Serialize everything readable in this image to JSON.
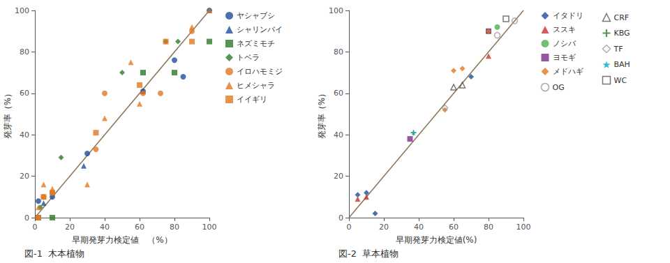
{
  "chart_data": [
    {
      "type": "scatter",
      "title": "図-1  木本植物",
      "xlabel": "早期発芽力検定値　（%）",
      "ylabel": "発芽率（%）",
      "xlim": [
        0,
        100
      ],
      "ylim": [
        0,
        100
      ],
      "xticks": [
        0,
        20,
        40,
        60,
        80,
        100
      ],
      "yticks": [
        0,
        20,
        40,
        60,
        80,
        100
      ],
      "grid": false,
      "legend": "right",
      "series": [
        {
          "type": "line",
          "color": "#8B7355",
          "values": [
            [
              0,
              0
            ],
            [
              100,
              100
            ]
          ]
        },
        {
          "name": "ヤシャブシ",
          "color": "#1F4E9A",
          "marker": "circle",
          "values": [
            [
              2,
              8
            ],
            [
              10,
              10
            ],
            [
              30,
              31
            ],
            [
              62,
              61
            ],
            [
              80,
              76
            ],
            [
              85,
              68
            ],
            [
              100,
              100
            ]
          ]
        },
        {
          "name": "シャリンバイ",
          "color": "#1F4E9A",
          "marker": "triangle",
          "values": [
            [
              5,
              7
            ],
            [
              28,
              25
            ],
            [
              62,
              61
            ],
            [
              100,
              100
            ]
          ]
        },
        {
          "name": "ネズミモチ",
          "color": "#2D7A27",
          "marker": "square",
          "values": [
            [
              2,
              0
            ],
            [
              10,
              0
            ],
            [
              62,
              70
            ],
            [
              80,
              70
            ],
            [
              100,
              85
            ]
          ]
        },
        {
          "name": "トベラ",
          "color": "#2D7A27",
          "marker": "diamond",
          "values": [
            [
              3,
              5
            ],
            [
              15,
              29
            ],
            [
              50,
              70
            ],
            [
              75,
              85
            ],
            [
              82,
              85
            ]
          ]
        },
        {
          "name": "イロハモミジ",
          "color": "#E07820",
          "marker": "circle",
          "values": [
            [
              2,
              0
            ],
            [
              5,
              10
            ],
            [
              10,
              12
            ],
            [
              35,
              33
            ],
            [
              40,
              60
            ],
            [
              62,
              60
            ],
            [
              72,
              60
            ],
            [
              90,
              90
            ]
          ]
        },
        {
          "name": "ヒメシャラ",
          "color": "#E07820",
          "marker": "triangle",
          "values": [
            [
              2,
              5
            ],
            [
              5,
              16
            ],
            [
              10,
              14
            ],
            [
              30,
              16
            ],
            [
              40,
              48
            ],
            [
              55,
              75
            ],
            [
              60,
              55
            ],
            [
              90,
              92
            ],
            [
              100,
              100
            ]
          ]
        },
        {
          "name": "イイギリ",
          "color": "#E07820",
          "marker": "square",
          "values": [
            [
              2,
              0
            ],
            [
              5,
              10
            ],
            [
              10,
              12
            ],
            [
              35,
              41
            ],
            [
              60,
              64
            ],
            [
              75,
              85
            ],
            [
              90,
              85
            ]
          ]
        }
      ]
    },
    {
      "type": "scatter",
      "title": "図-2  草本植物",
      "xlabel": "早期発芽力検定値(%)",
      "ylabel": "発芽率（%）",
      "xlim": [
        0,
        100
      ],
      "ylim": [
        0,
        100
      ],
      "xticks": [
        0,
        20,
        40,
        60,
        80,
        100
      ],
      "yticks": [
        0,
        20,
        40,
        60,
        80,
        100
      ],
      "grid": false,
      "legend": "right",
      "series": [
        {
          "type": "line",
          "color": "#8B7355",
          "values": [
            [
              0,
              0
            ],
            [
              100,
              100
            ]
          ]
        },
        {
          "name": "イタドリ",
          "color": "#1F4E9A",
          "marker": "diamond",
          "values": [
            [
              5,
              11
            ],
            [
              10,
              12
            ],
            [
              15,
              2
            ],
            [
              70,
              68
            ]
          ]
        },
        {
          "name": "ススキ",
          "color": "#CC3333",
          "marker": "triangle",
          "values": [
            [
              5,
              9
            ],
            [
              10,
              10
            ],
            [
              80,
              78
            ]
          ]
        },
        {
          "name": "ノシバ",
          "color": "#4CAF50",
          "marker": "circle",
          "values": [
            [
              80,
              90
            ],
            [
              85,
              92
            ]
          ]
        },
        {
          "name": "ヨモギ",
          "color": "#7B2D8B",
          "marker": "square",
          "values": [
            [
              35,
              38
            ],
            [
              80,
              90
            ]
          ]
        },
        {
          "name": "メドハギ",
          "color": "#E07820",
          "marker": "diamond",
          "values": [
            [
              55,
              52
            ],
            [
              60,
              71
            ],
            [
              65,
              72
            ],
            [
              80,
              90
            ]
          ]
        },
        {
          "name": "OG",
          "color": "#999999",
          "marker": "open-circle",
          "values": [
            [
              85,
              88
            ],
            [
              95,
              95
            ]
          ]
        },
        {
          "name": "CRF",
          "color": "#555555",
          "marker": "open-triangle",
          "values": [
            [
              60,
              63
            ],
            [
              65,
              64
            ]
          ]
        },
        {
          "name": "KBG",
          "color": "#2D7A27",
          "marker": "plus",
          "values": [
            [
              37,
              41
            ]
          ]
        },
        {
          "name": "TF",
          "color": "#999999",
          "marker": "open-diamond",
          "values": [
            [
              55,
              53
            ]
          ]
        },
        {
          "name": "BAH",
          "color": "#00AACC",
          "marker": "star",
          "values": [
            [
              37,
              41
            ]
          ]
        },
        {
          "name": "WC",
          "color": "#555555",
          "marker": "open-square",
          "values": [
            [
              90,
              96
            ]
          ]
        }
      ]
    }
  ]
}
